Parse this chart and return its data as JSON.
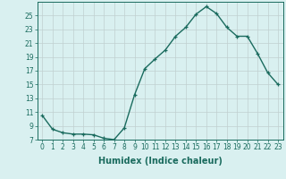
{
  "x": [
    0,
    1,
    2,
    3,
    4,
    5,
    6,
    7,
    8,
    9,
    10,
    11,
    12,
    13,
    14,
    15,
    16,
    17,
    18,
    19,
    20,
    21,
    22,
    23
  ],
  "y": [
    10.5,
    8.5,
    8.0,
    7.8,
    7.8,
    7.7,
    7.2,
    7.0,
    8.7,
    13.5,
    17.3,
    18.7,
    20.0,
    22.0,
    23.3,
    25.2,
    26.3,
    25.3,
    23.3,
    22.0,
    22.0,
    19.5,
    16.7,
    15.0
  ],
  "line_color": "#1a6b5e",
  "marker": "+",
  "marker_size": 3,
  "background_color": "#d9f0f0",
  "grid_color": "#c0d0d0",
  "xlabel": "Humidex (Indice chaleur)",
  "xlim": [
    -0.5,
    23.5
  ],
  "ylim": [
    7,
    27
  ],
  "yticks": [
    7,
    9,
    11,
    13,
    15,
    17,
    19,
    21,
    23,
    25
  ],
  "xticks": [
    0,
    1,
    2,
    3,
    4,
    5,
    6,
    7,
    8,
    9,
    10,
    11,
    12,
    13,
    14,
    15,
    16,
    17,
    18,
    19,
    20,
    21,
    22,
    23
  ],
  "tick_fontsize": 5.5,
  "label_fontsize": 7,
  "line_width": 1.0,
  "marker_linewidth": 0.9
}
